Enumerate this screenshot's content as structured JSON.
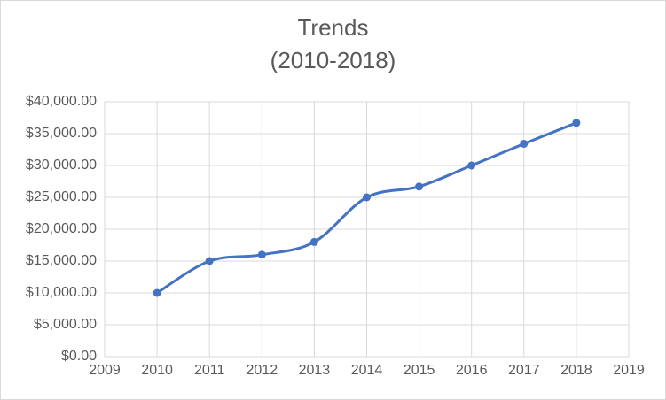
{
  "chart_data": {
    "type": "line",
    "title": "Trends",
    "subtitle": "(2010-2018)",
    "x": [
      2010,
      2011,
      2012,
      2013,
      2014,
      2015,
      2016,
      2017,
      2018
    ],
    "series": [
      {
        "name": "Trends",
        "values": [
          10000,
          15000,
          16000,
          18000,
          25000,
          26700,
          30000,
          33400,
          36700
        ]
      }
    ],
    "x_axis": {
      "tick_labels": [
        "2009",
        "2010",
        "2011",
        "2012",
        "2013",
        "2014",
        "2015",
        "2016",
        "2017",
        "2018",
        "2019"
      ],
      "range": [
        2009,
        2019
      ]
    },
    "y_axis": {
      "tick_labels": [
        "$40,000.00",
        "$35,000.00",
        "$30,000.00",
        "$25,000.00",
        "$20,000.00",
        "$15,000.00",
        "$10,000.00",
        "$5,000.00",
        "$0.00"
      ],
      "min": 0,
      "max": 40000,
      "step": 5000,
      "format": "currency"
    },
    "grid": true,
    "legend": "none",
    "smooth_line": true,
    "marker": "circle",
    "colors": {
      "line": "#4472c4",
      "marker": "#4472c4",
      "gridline": "#d9d9d9",
      "plot_border": "#d9d9d9",
      "text": "#595959",
      "background": "#ffffff"
    }
  }
}
